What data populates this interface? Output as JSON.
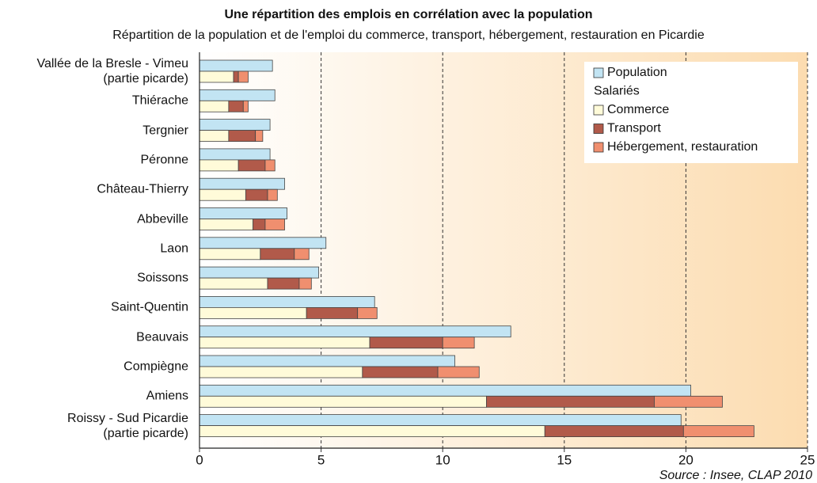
{
  "chart_data": {
    "type": "bar",
    "orientation": "horizontal",
    "title": "Une répartition des emplois en corrélation avec la population",
    "subtitle": "Répartition de la population et de l'emploi du commerce, transport, hébergement, restauration en Picardie",
    "source": "Source : Insee, CLAP 2010",
    "legend_group": "Salariés",
    "categories": [
      "Vallée de la Bresle - Vimeu\n(partie picarde)",
      "Thiérache",
      "Tergnier",
      "Péronne",
      "Château-Thierry",
      "Abbeville",
      "Laon",
      "Soissons",
      "Saint-Quentin",
      "Beauvais",
      "Compiègne",
      "Amiens",
      "Roissy - Sud Picardie\n(partie picarde)"
    ],
    "series": [
      {
        "name": "Population",
        "color": "#c2e4f3",
        "values": [
          3.0,
          3.1,
          2.9,
          2.9,
          3.5,
          3.6,
          5.2,
          4.9,
          7.2,
          12.8,
          10.5,
          20.2,
          19.8
        ]
      },
      {
        "name": "Commerce",
        "color": "#fffbd9",
        "values": [
          1.4,
          1.2,
          1.2,
          1.6,
          1.9,
          2.2,
          2.5,
          2.8,
          4.4,
          7.0,
          6.7,
          11.8,
          14.2
        ]
      },
      {
        "name": "Transport",
        "color": "#b15a4a",
        "values": [
          0.2,
          0.6,
          1.1,
          1.1,
          0.9,
          0.5,
          1.4,
          1.3,
          2.1,
          3.0,
          3.1,
          6.9,
          5.7
        ]
      },
      {
        "name": "Hébergement, restauration",
        "color": "#f08f6f",
        "values": [
          0.4,
          0.2,
          0.3,
          0.4,
          0.4,
          0.8,
          0.6,
          0.5,
          0.8,
          1.3,
          1.7,
          2.8,
          2.9
        ]
      }
    ],
    "xlim": [
      0,
      25
    ],
    "xticks": [
      0,
      5,
      10,
      15,
      20,
      25
    ],
    "grid": true,
    "legend": "top-right"
  }
}
